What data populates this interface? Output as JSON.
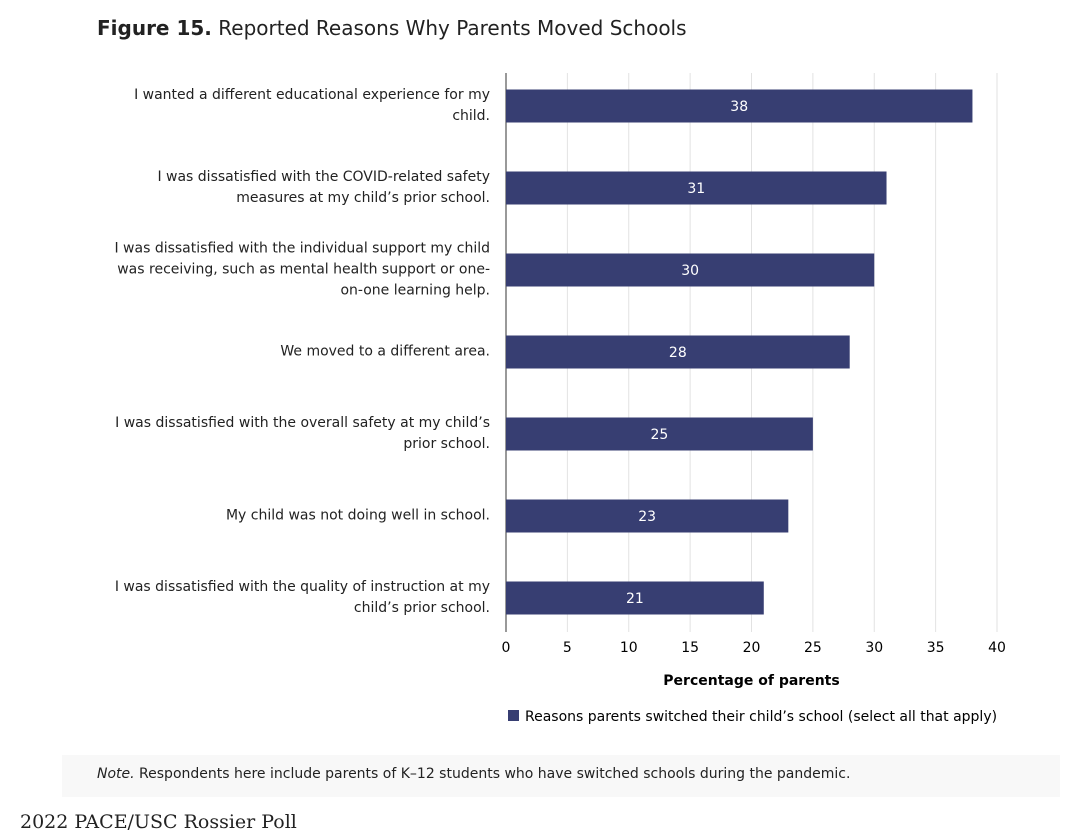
{
  "chart_data": {
    "type": "bar",
    "figure_label": "Figure 15.",
    "title": "Reported Reasons Why Parents Moved Schools",
    "categories": [
      "I wanted a different educational experience for my child.",
      "I was dissatisfied with the COVID-related safety measures at my child’s prior school.",
      "I was dissatisfied with the individual support my child was receiving, such as mental health support or one-on-one learning help.",
      "We moved to a different area.",
      "I was dissatisfied with the overall safety at my child’s prior school.",
      "My child was not doing well in school.",
      "I was dissatisfied with the quality of instruction at my child’s prior school."
    ],
    "series": [
      {
        "name": "Reasons parents switched their child’s school (select all that apply)",
        "color": "#373e72",
        "values": [
          38,
          31,
          30,
          28,
          25,
          23,
          21
        ]
      }
    ],
    "xlim": [
      0,
      40
    ],
    "xticks": [
      0,
      5,
      10,
      15,
      20,
      25,
      30,
      35,
      40
    ],
    "xlabel": "Percentage of parents",
    "grid": true,
    "note_label": "Note.",
    "note": "Respondents here include parents of K–12 students who have switched schools during the pandemic."
  },
  "source": "2022 PACE/USC Rossier Poll"
}
